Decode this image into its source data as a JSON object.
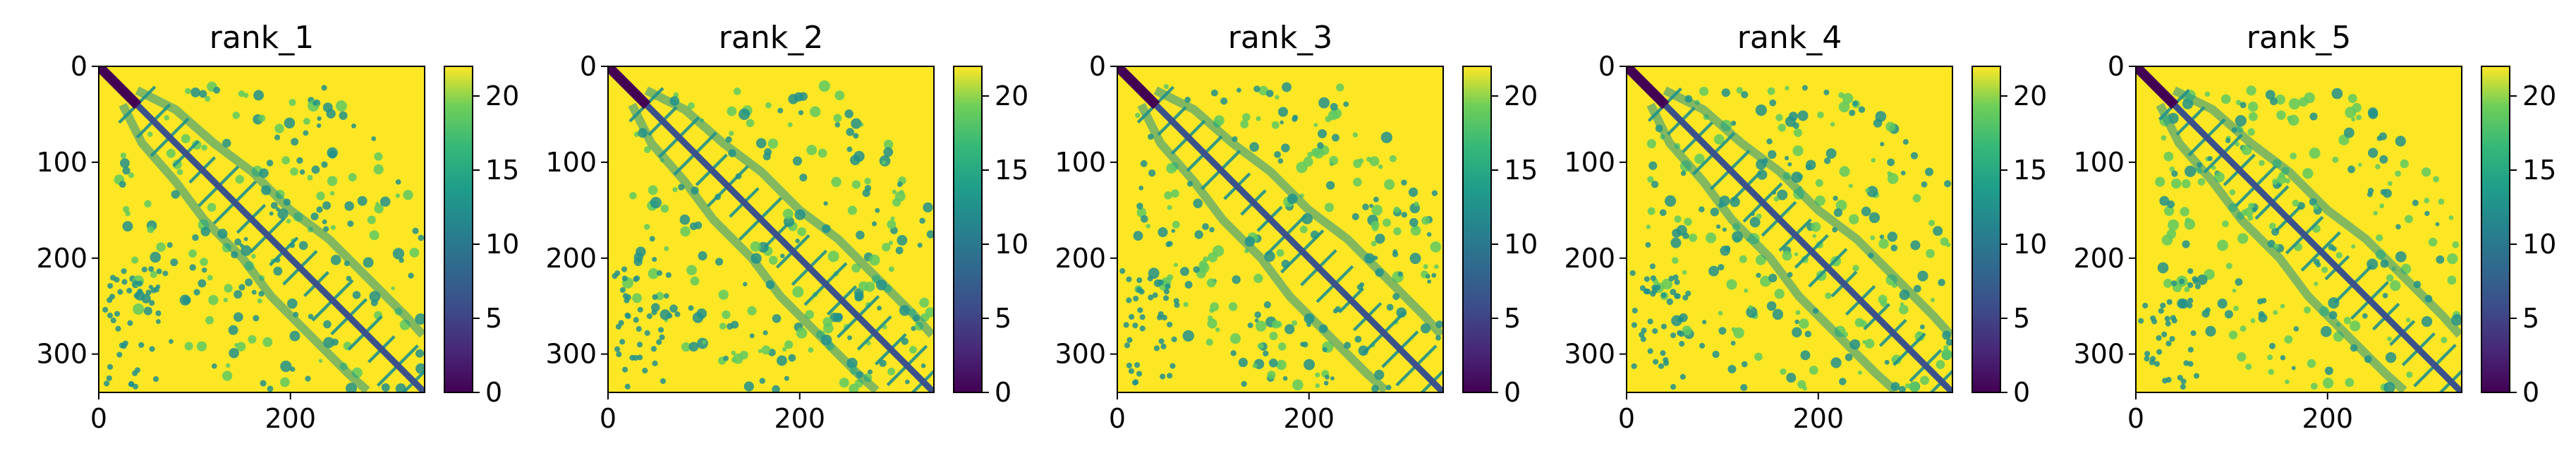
{
  "chart_data": [
    {
      "type": "heatmap",
      "title": "rank_1",
      "xlim": [
        0,
        340
      ],
      "ylim": [
        340,
        0
      ],
      "xticks": [
        0,
        200
      ],
      "yticks": [
        0,
        100,
        200,
        300
      ],
      "colorbar": {
        "range": [
          0,
          22
        ],
        "ticks": [
          0,
          5,
          10,
          15,
          20
        ],
        "colormap": "viridis"
      }
    },
    {
      "type": "heatmap",
      "title": "rank_2",
      "xlim": [
        0,
        340
      ],
      "ylim": [
        340,
        0
      ],
      "xticks": [
        0,
        200
      ],
      "yticks": [
        0,
        100,
        200,
        300
      ],
      "colorbar": {
        "range": [
          0,
          22
        ],
        "ticks": [
          0,
          5,
          10,
          15,
          20
        ],
        "colormap": "viridis"
      }
    },
    {
      "type": "heatmap",
      "title": "rank_3",
      "xlim": [
        0,
        340
      ],
      "ylim": [
        340,
        0
      ],
      "xticks": [
        0,
        200
      ],
      "yticks": [
        0,
        100,
        200,
        300
      ],
      "colorbar": {
        "range": [
          0,
          22
        ],
        "ticks": [
          0,
          5,
          10,
          15,
          20
        ],
        "colormap": "viridis"
      }
    },
    {
      "type": "heatmap",
      "title": "rank_4",
      "xlim": [
        0,
        340
      ],
      "ylim": [
        340,
        0
      ],
      "xticks": [
        0,
        200
      ],
      "yticks": [
        0,
        100,
        200,
        300
      ],
      "colorbar": {
        "range": [
          0,
          22
        ],
        "ticks": [
          0,
          5,
          10,
          15,
          20
        ],
        "colormap": "viridis"
      }
    },
    {
      "type": "heatmap",
      "title": "rank_5",
      "xlim": [
        0,
        340
      ],
      "ylim": [
        340,
        0
      ],
      "xticks": [
        0,
        200
      ],
      "yticks": [
        0,
        100,
        200,
        300
      ],
      "colorbar": {
        "range": [
          0,
          22
        ],
        "ticks": [
          0,
          5,
          10,
          15,
          20
        ],
        "colormap": "viridis"
      }
    }
  ],
  "colors": {
    "background_high": "#fde725",
    "contact_mid": "#21918c",
    "contact_low": "#3b528b",
    "contact_min": "#440154"
  }
}
